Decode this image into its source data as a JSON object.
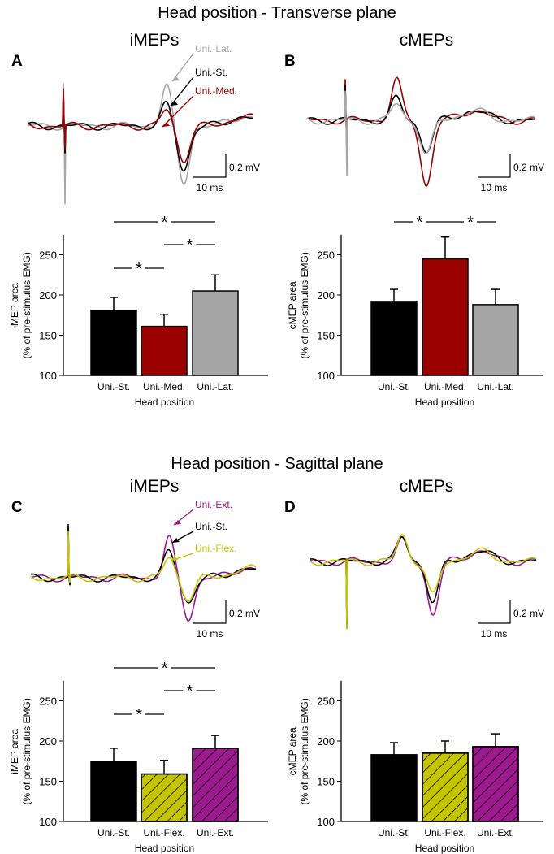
{
  "titles": {
    "transverse": "Head position - Transverse plane",
    "sagittal": "Head position - Sagittal plane"
  },
  "colors": {
    "st": "#000000",
    "med": "#9b0000",
    "lat": "#a6a6a6",
    "flex": "#c4c400",
    "ext": "#9c1a8e"
  },
  "scale": {
    "mv": "0.2 mV",
    "ms": "10 ms"
  },
  "chart_data": [
    {
      "id": "A",
      "type": "bar",
      "title": "iMEPs",
      "xlabel": "Head position",
      "ylabel": [
        "iMEP area",
        "(% of pre-stimulus EMG)"
      ],
      "ylim": [
        100,
        275
      ],
      "yticks": [
        100,
        150,
        200,
        250
      ],
      "categories": [
        "Uni.-St.",
        "Uni.-Med.",
        "Uni.-Lat."
      ],
      "values": [
        181,
        161,
        205
      ],
      "errors": [
        16,
        15,
        20
      ],
      "fills": [
        "st",
        "med",
        "lat"
      ],
      "hatched": [
        false,
        false,
        false
      ],
      "significance": [
        {
          "from": 0,
          "to": 2,
          "label": "*"
        },
        {
          "from": 1,
          "to": 2,
          "label": "*"
        },
        {
          "from": 0,
          "to": 1,
          "label": "*"
        }
      ],
      "trace_labels": [
        "Uni.-Lat.",
        "Uni.-St.",
        "Uni.-Med."
      ]
    },
    {
      "id": "B",
      "type": "bar",
      "title": "cMEPs",
      "xlabel": "Head position",
      "ylabel": [
        "cMEP area",
        "(% of pre-stimulus EMG)"
      ],
      "ylim": [
        100,
        275
      ],
      "yticks": [
        100,
        150,
        200,
        250
      ],
      "categories": [
        "Uni.-St.",
        "Uni.-Med.",
        "Uni.-Lat."
      ],
      "values": [
        191,
        245,
        188
      ],
      "errors": [
        16,
        27,
        19
      ],
      "fills": [
        "st",
        "med",
        "lat"
      ],
      "hatched": [
        false,
        false,
        false
      ],
      "significance": [
        {
          "from": 0,
          "to": 1,
          "label": "*"
        },
        {
          "from": 1,
          "to": 2,
          "label": "*"
        }
      ],
      "trace_labels": []
    },
    {
      "id": "C",
      "type": "bar",
      "title": "iMEPs",
      "xlabel": "Head position",
      "ylabel": [
        "iMEP area",
        "(% of pre-stimulus EMG)"
      ],
      "ylim": [
        100,
        275
      ],
      "yticks": [
        100,
        150,
        200,
        250
      ],
      "categories": [
        "Uni.-St.",
        "Uni.-Flex.",
        "Uni.-Ext."
      ],
      "values": [
        175,
        159,
        191
      ],
      "errors": [
        16,
        17,
        16
      ],
      "fills": [
        "st",
        "flex",
        "ext"
      ],
      "hatched": [
        false,
        true,
        true
      ],
      "significance": [
        {
          "from": 0,
          "to": 2,
          "label": "*"
        },
        {
          "from": 1,
          "to": 2,
          "label": "*"
        },
        {
          "from": 0,
          "to": 1,
          "label": "*"
        }
      ],
      "trace_labels": [
        "Uni.-Ext.",
        "Uni.-St.",
        "Uni.-Flex."
      ]
    },
    {
      "id": "D",
      "type": "bar",
      "title": "cMEPs",
      "xlabel": "Head position",
      "ylabel": [
        "cMEP area",
        "(% of pre-stimulus EMG)"
      ],
      "ylim": [
        100,
        275
      ],
      "yticks": [
        100,
        150,
        200,
        250
      ],
      "categories": [
        "Uni.-St.",
        "Uni.-Flex.",
        "Uni.-Ext."
      ],
      "values": [
        183,
        185,
        193
      ],
      "errors": [
        15,
        15,
        16
      ],
      "fills": [
        "st",
        "flex",
        "ext"
      ],
      "hatched": [
        false,
        true,
        true
      ],
      "significance": [],
      "trace_labels": []
    }
  ]
}
